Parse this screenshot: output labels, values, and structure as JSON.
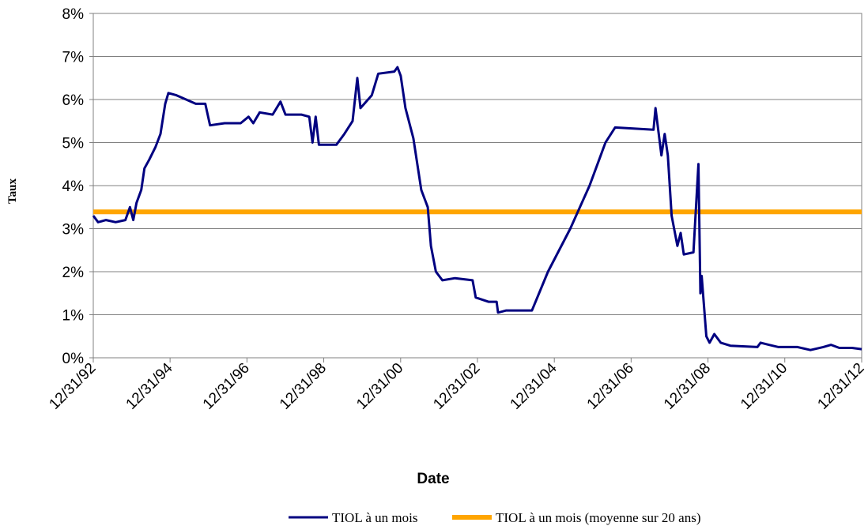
{
  "chart_data": {
    "type": "line",
    "x_label": "Date",
    "y_label": "Taux",
    "xlim": [
      "1992-12-31",
      "2012-12-31"
    ],
    "xticks": [
      {
        "value": "1992-12-31",
        "label": "12/31/92"
      },
      {
        "value": "1994-12-31",
        "label": "12/31/94"
      },
      {
        "value": "1996-12-31",
        "label": "12/31/96"
      },
      {
        "value": "1998-12-31",
        "label": "12/31/98"
      },
      {
        "value": "2000-12-31",
        "label": "12/31/00"
      },
      {
        "value": "2002-12-31",
        "label": "12/31/02"
      },
      {
        "value": "2004-12-31",
        "label": "12/31/04"
      },
      {
        "value": "2006-12-31",
        "label": "12/31/06"
      },
      {
        "value": "2008-12-31",
        "label": "12/31/08"
      },
      {
        "value": "2010-12-31",
        "label": "12/31/10"
      },
      {
        "value": "2012-12-31",
        "label": "12/31/12"
      }
    ],
    "ylim": [
      0,
      8
    ],
    "yticks": [
      {
        "value": 0,
        "label": "0%"
      },
      {
        "value": 1,
        "label": "1%"
      },
      {
        "value": 2,
        "label": "2%"
      },
      {
        "value": 3,
        "label": "3%"
      },
      {
        "value": 4,
        "label": "4%"
      },
      {
        "value": 5,
        "label": "5%"
      },
      {
        "value": 6,
        "label": "6%"
      },
      {
        "value": 7,
        "label": "7%"
      },
      {
        "value": 8,
        "label": "8%"
      }
    ],
    "grid": true,
    "legend": "bottom",
    "series": [
      {
        "name": "TIOL à un mois",
        "color": "#000080",
        "x": [
          "1992-12-31",
          "1993-02-15",
          "1993-05-01",
          "1993-08-01",
          "1993-11-01",
          "1993-12-15",
          "1994-01-15",
          "1994-02-15",
          "1994-04-01",
          "1994-05-01",
          "1994-06-15",
          "1994-08-15",
          "1994-10-01",
          "1994-11-15",
          "1994-12-15",
          "1995-03-01",
          "1995-06-01",
          "1995-09-01",
          "1995-12-01",
          "1996-01-15",
          "1996-06-01",
          "1996-11-01",
          "1997-01-15",
          "1997-03-01",
          "1997-05-01",
          "1997-09-01",
          "1997-11-15",
          "1998-01-01",
          "1998-06-01",
          "1998-08-15",
          "1998-09-15",
          "1998-10-15",
          "1998-11-15",
          "1999-05-01",
          "1999-07-15",
          "1999-10-01",
          "1999-11-15",
          "1999-12-15",
          "2000-04-01",
          "2000-06-01",
          "2000-11-01",
          "2000-12-01",
          "2001-01-01",
          "2001-02-15",
          "2001-05-01",
          "2001-07-15",
          "2001-09-15",
          "2001-10-15",
          "2001-12-01",
          "2002-02-01",
          "2002-06-01",
          "2002-11-15",
          "2002-12-15",
          "2003-04-15",
          "2003-07-01",
          "2003-07-15",
          "2003-10-01",
          "2004-06-01",
          "2004-11-01",
          "2005-06-01",
          "2005-12-01",
          "2006-05-01",
          "2006-08-01",
          "2007-08-01",
          "2007-08-20",
          "2007-10-15",
          "2007-11-15",
          "2007-12-15",
          "2008-01-20",
          "2008-03-15",
          "2008-04-15",
          "2008-05-15",
          "2008-08-15",
          "2008-10-01",
          "2008-10-20",
          "2008-11-01",
          "2008-12-15",
          "2009-01-15",
          "2009-03-01",
          "2009-05-01",
          "2009-08-01",
          "2010-04-15",
          "2010-05-15",
          "2010-08-01",
          "2010-11-01",
          "2011-05-01",
          "2011-09-01",
          "2012-01-01",
          "2012-03-15",
          "2012-06-01",
          "2012-10-01",
          "2012-12-31"
        ],
        "values": [
          3.3,
          3.15,
          3.2,
          3.15,
          3.2,
          3.5,
          3.2,
          3.6,
          3.9,
          4.4,
          4.6,
          4.9,
          5.2,
          5.9,
          6.15,
          6.1,
          6.0,
          5.9,
          5.9,
          5.4,
          5.45,
          5.45,
          5.6,
          5.45,
          5.7,
          5.65,
          5.95,
          5.65,
          5.65,
          5.6,
          5.0,
          5.6,
          4.95,
          4.95,
          5.2,
          5.5,
          6.5,
          5.8,
          6.1,
          6.6,
          6.65,
          6.75,
          6.55,
          5.8,
          5.1,
          3.9,
          3.5,
          2.6,
          2.0,
          1.8,
          1.85,
          1.8,
          1.4,
          1.3,
          1.3,
          1.05,
          1.1,
          1.1,
          2.0,
          3.0,
          4.0,
          5.0,
          5.35,
          5.3,
          5.8,
          4.7,
          5.2,
          4.7,
          3.3,
          2.6,
          2.9,
          2.4,
          2.45,
          4.5,
          1.5,
          1.9,
          0.5,
          0.35,
          0.55,
          0.35,
          0.28,
          0.25,
          0.35,
          0.3,
          0.25,
          0.25,
          0.18,
          0.25,
          0.3,
          0.23,
          0.23,
          0.2
        ]
      },
      {
        "name": "TIOL à un mois (moyenne sur 20 ans)",
        "color": "#ffa500",
        "x": [
          "1992-12-31",
          "2012-12-31"
        ],
        "values": [
          3.39,
          3.39
        ]
      }
    ]
  }
}
